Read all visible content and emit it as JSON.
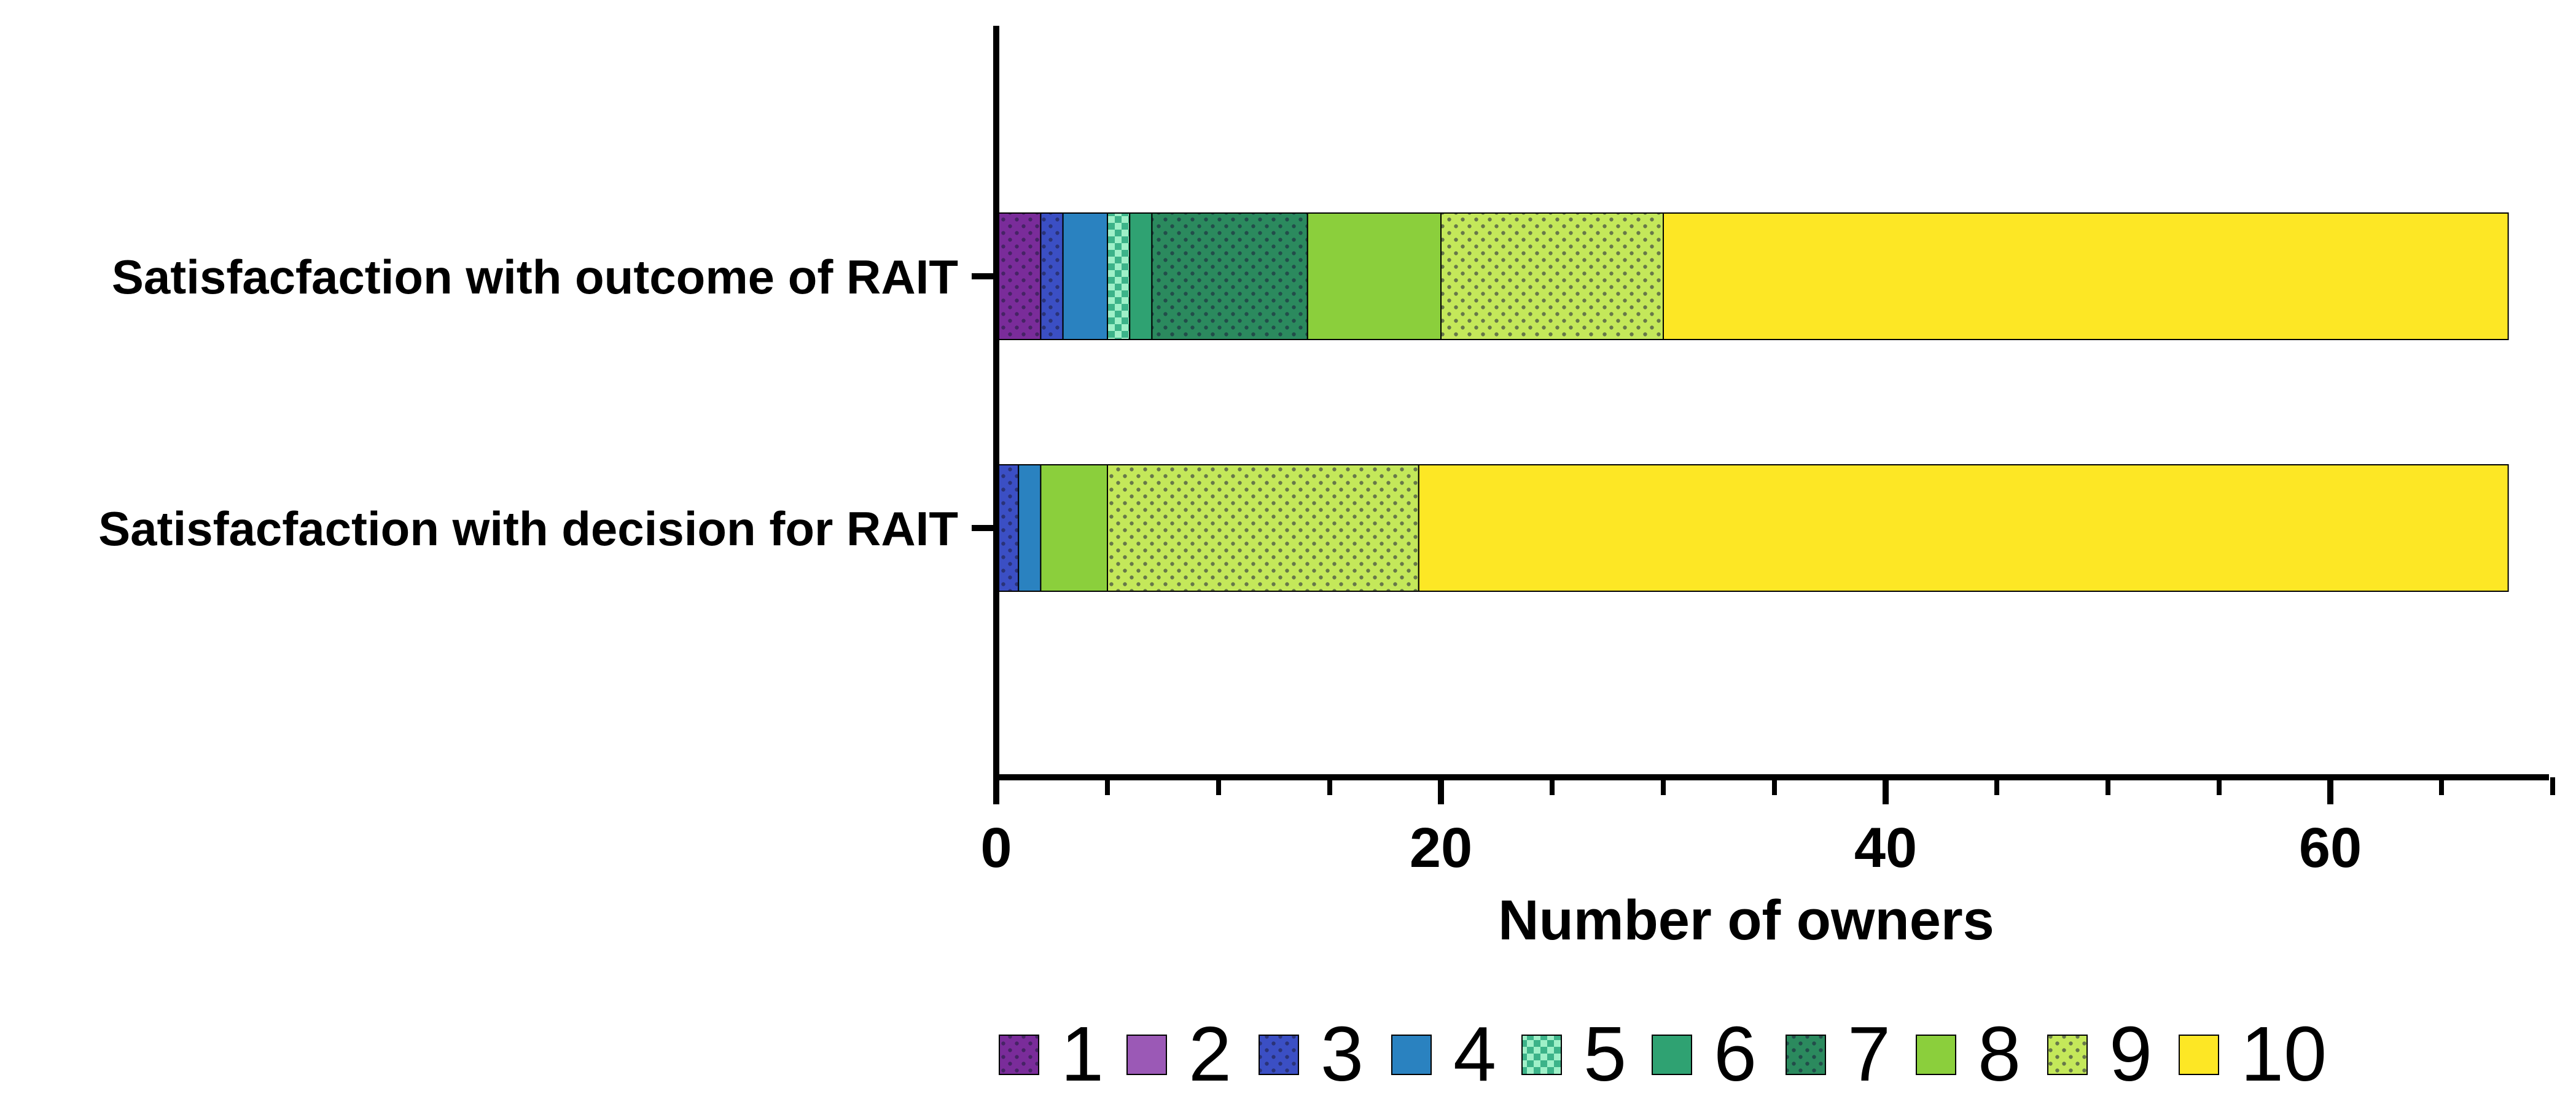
{
  "chart_data": {
    "type": "bar",
    "orientation": "horizontal",
    "stacked": true,
    "title": "",
    "xlabel": "Number of owners",
    "ylabel": "",
    "xlim": [
      0,
      70
    ],
    "x_ticks_major": [
      0,
      20,
      40,
      60
    ],
    "x_tick_labels": [
      "0",
      "20",
      "40",
      "60"
    ],
    "x_ticks_minor": [
      5,
      10,
      15,
      25,
      30,
      35,
      45,
      50,
      55,
      65,
      70
    ],
    "grid": false,
    "legend_position": "bottom",
    "categories": [
      "Satisfacfaction with outcome of RAIT",
      "Satisfacfaction with decision for RAIT"
    ],
    "series": [
      {
        "name": "1",
        "color": "#7a2c9a",
        "pattern": "dots",
        "values": [
          2,
          0
        ]
      },
      {
        "name": "2",
        "color": "#9b59b6",
        "pattern": "solid",
        "values": [
          0,
          0
        ]
      },
      {
        "name": "3",
        "color": "#3b4fc4",
        "pattern": "dots",
        "values": [
          1,
          1
        ]
      },
      {
        "name": "4",
        "color": "#2a82c0",
        "pattern": "solid",
        "values": [
          2,
          1
        ]
      },
      {
        "name": "5",
        "color": "#3cb389",
        "pattern": "checker",
        "values": [
          1,
          0
        ]
      },
      {
        "name": "6",
        "color": "#2fa272",
        "pattern": "solid",
        "values": [
          1,
          0
        ]
      },
      {
        "name": "7",
        "color": "#2b8a5e",
        "pattern": "dots",
        "values": [
          7,
          0
        ]
      },
      {
        "name": "8",
        "color": "#8bcf3c",
        "pattern": "solid",
        "values": [
          6,
          3
        ]
      },
      {
        "name": "9",
        "color": "#c4e85a",
        "pattern": "dots",
        "values": [
          10,
          14
        ]
      },
      {
        "name": "10",
        "color": "#fde725",
        "pattern": "solid",
        "values": [
          38,
          49
        ]
      }
    ]
  }
}
